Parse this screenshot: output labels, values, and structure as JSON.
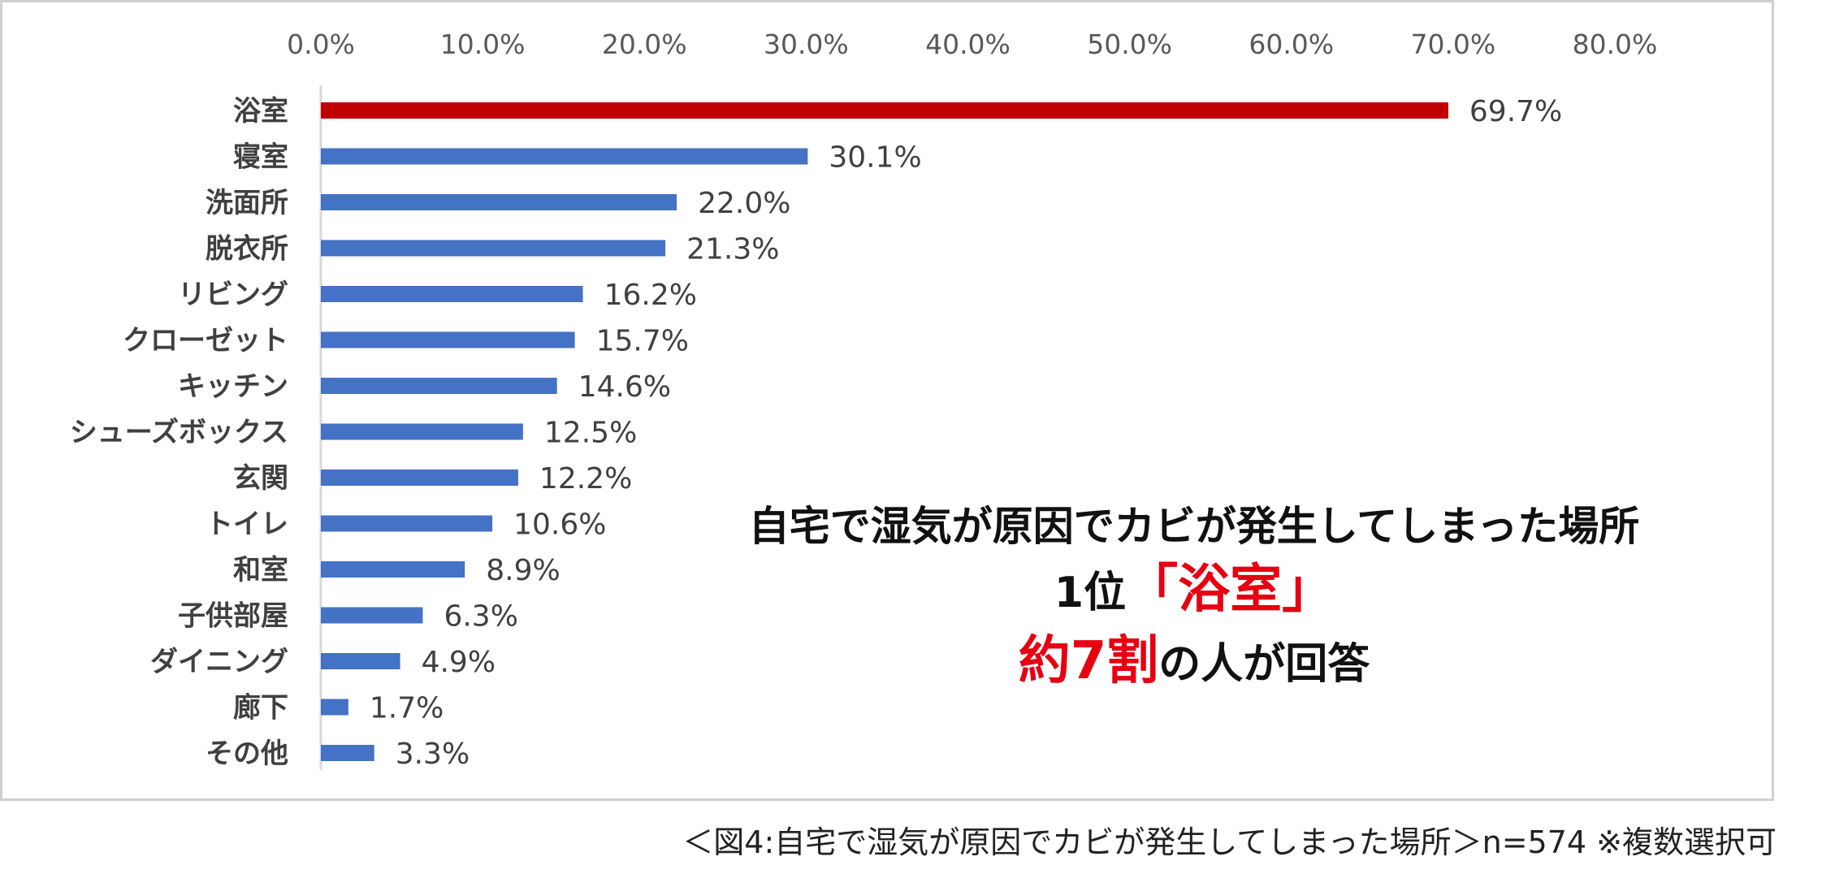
{
  "chart_data": {
    "type": "bar",
    "orientation": "horizontal",
    "categories": [
      "浴室",
      "寝室",
      "洗面所",
      "脱衣所",
      "リビング",
      "クローゼット",
      "キッチン",
      "シューズボックス",
      "玄関",
      "トイレ",
      "和室",
      "子供部屋",
      "ダイニング",
      "廊下",
      "その他"
    ],
    "values": [
      69.7,
      30.1,
      22.0,
      21.3,
      16.2,
      15.7,
      14.6,
      12.5,
      12.2,
      10.6,
      8.9,
      6.3,
      4.9,
      1.7,
      3.3
    ],
    "value_labels": [
      "69.7%",
      "30.1%",
      "22.0%",
      "21.3%",
      "16.2%",
      "15.7%",
      "14.6%",
      "12.5%",
      "12.2%",
      "10.6%",
      "8.9%",
      "6.3%",
      "4.9%",
      "1.7%",
      "3.3%"
    ],
    "xlim": [
      0,
      80
    ],
    "x_ticks": [
      0,
      10,
      20,
      30,
      40,
      50,
      60,
      70,
      80
    ],
    "x_tick_labels": [
      "0.0%",
      "10.0%",
      "20.0%",
      "30.0%",
      "40.0%",
      "50.0%",
      "60.0%",
      "70.0%",
      "80.0%"
    ],
    "x_axis_position": "top",
    "grid": false,
    "highlight_index": 0,
    "colors": {
      "bar": "#4472c4",
      "highlight": "#c00000",
      "axis": "#d9d9d9"
    },
    "title": "",
    "xlabel": "",
    "ylabel": ""
  },
  "callout": {
    "line1": "自宅で湿気が原因でカビが発生してしまった場所",
    "line2_prefix": "1位",
    "line2_highlight": "「浴室」",
    "line3_highlight": "約7割",
    "line3_suffix": "の人が回答",
    "highlight_color": "#e60012"
  },
  "caption": "＜図4:自宅で湿気が原因でカビが発生してしまった場所＞n=574 ※複数選択可"
}
